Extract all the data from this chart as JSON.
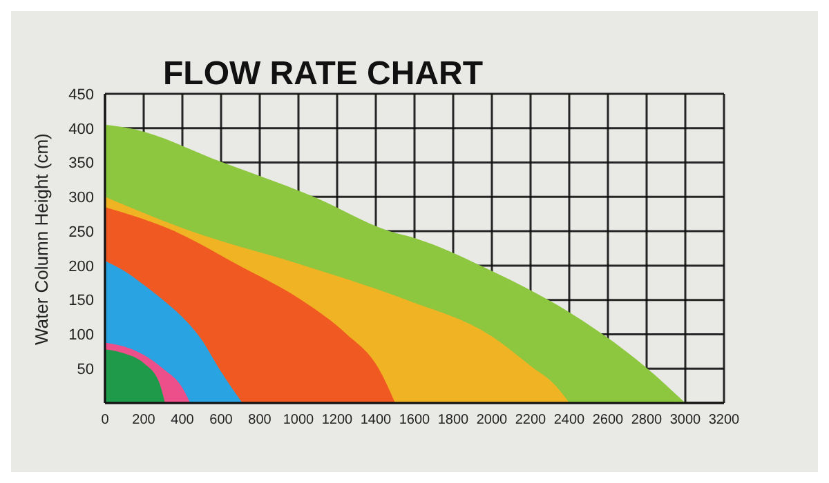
{
  "chart_data": {
    "type": "area",
    "title": "FLOW RATE CHART",
    "ylabel": "Water Column Height (cm)",
    "series": [
      {
        "color": "#8dc63f",
        "x": [
          0,
          125,
          610,
          1080,
          1470,
          1600,
          2000,
          2400,
          2800,
          3000
        ],
        "values": [
          405,
          400,
          350,
          300,
          250,
          240,
          192,
          132,
          51,
          0
        ]
      },
      {
        "color": "#f0b324",
        "x": [
          0,
          445,
          1030,
          1560,
          2000,
          2200,
          2330,
          2400
        ],
        "values": [
          300,
          250,
          200,
          150,
          97,
          54,
          25,
          0
        ]
      },
      {
        "color": "#f05a22",
        "x": [
          0,
          360,
          695,
          1015,
          1250,
          1415,
          1500
        ],
        "values": [
          285,
          250,
          200,
          150,
          100,
          50,
          0
        ]
      },
      {
        "color": "#29a3e2",
        "x": [
          0,
          100,
          200,
          300,
          400,
          500,
          590,
          660,
          710
        ],
        "values": [
          207,
          192,
          172,
          150,
          125,
          92,
          50,
          20,
          0
        ]
      },
      {
        "color": "#ec4f8a",
        "x": [
          0,
          100,
          200,
          300,
          400,
          440
        ],
        "values": [
          88,
          82,
          70,
          50,
          22,
          0
        ]
      },
      {
        "color": "#1f9a4a",
        "x": [
          0,
          100,
          200,
          280,
          310
        ],
        "values": [
          78,
          72,
          58,
          30,
          0
        ]
      }
    ],
    "xlim": [
      0,
      3200
    ],
    "xticks": [
      0,
      200,
      400,
      600,
      800,
      1000,
      1200,
      1400,
      1600,
      1800,
      2000,
      2200,
      2400,
      2600,
      2800,
      3000,
      3200
    ],
    "ylim": [
      0,
      450
    ],
    "yticks": [
      {
        "value": 0,
        "label": null
      },
      50,
      100,
      150,
      200,
      250,
      300,
      350,
      400,
      450
    ],
    "grid": true
  }
}
